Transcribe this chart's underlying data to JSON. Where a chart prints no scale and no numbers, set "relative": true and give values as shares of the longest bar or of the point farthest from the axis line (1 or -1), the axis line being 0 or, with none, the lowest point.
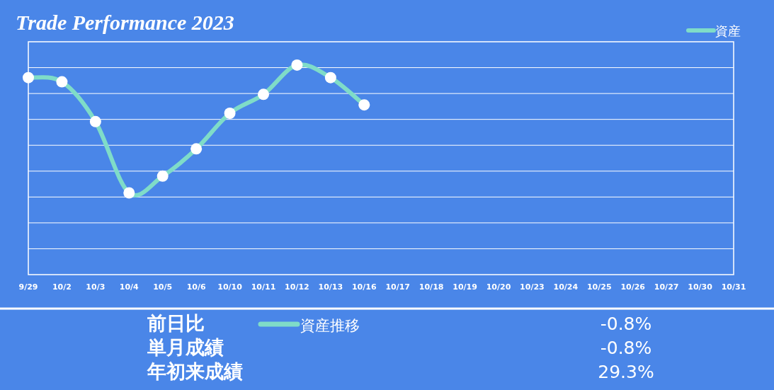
{
  "chart_data": [
    {
      "type": "line",
      "title": "Trade Performance 2023",
      "categories": [
        "9/29",
        "10/2",
        "10/3",
        "10/4",
        "10/5",
        "10/6",
        "10/10",
        "10/11",
        "10/12",
        "10/13",
        "10/16",
        "10/17",
        "10/18",
        "10/19",
        "10/20",
        "10/23",
        "10/24",
        "10/25",
        "10/26",
        "10/27",
        "10/30",
        "10/31"
      ],
      "series": [
        {
          "name": "資産",
          "color": "#7fdcc8",
          "values": [
            0.94,
            0.92,
            0.73,
            0.39,
            0.47,
            0.6,
            0.77,
            0.86,
            1,
            0.94,
            0.81,
            null,
            null,
            null,
            null,
            null,
            null,
            null,
            null,
            null,
            null,
            null
          ]
        }
      ],
      "relative": true,
      "grid": "y",
      "legend": "top right",
      "marker": "circle"
    },
    {
      "type": "other",
      "annotations": [
        "前日比",
        "単月成績",
        "年初来成績",
        "-0.8%",
        "-0.8%",
        "29.3%",
        "資産推移"
      ]
    }
  ]
}
